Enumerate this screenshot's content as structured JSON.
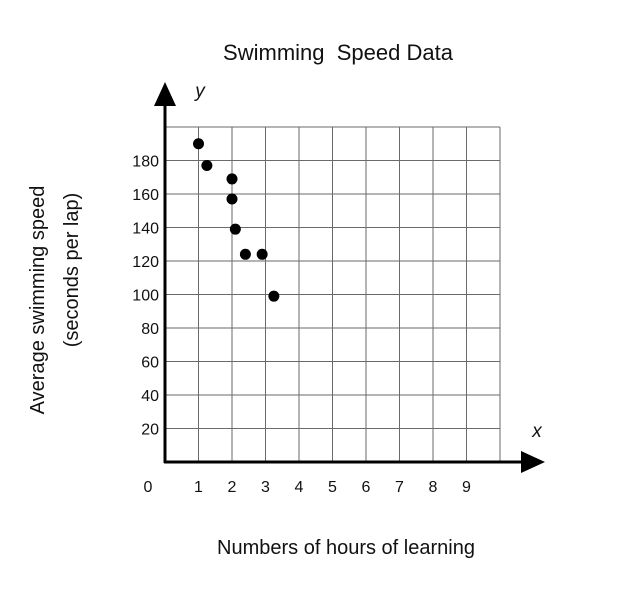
{
  "chart_data": {
    "type": "scatter",
    "title": "Swimming  Speed Data",
    "xlabel": "Numbers of hours of learning",
    "ylabel_line1": "Average swimming speed",
    "ylabel_line2": "(seconds per lap)",
    "x_var": "x",
    "y_var": "y",
    "origin_label": "0",
    "xlim": [
      0,
      10
    ],
    "ylim": [
      0,
      200
    ],
    "x_ticks": [
      1,
      2,
      3,
      4,
      5,
      6,
      7,
      8,
      9
    ],
    "y_ticks": [
      20,
      40,
      60,
      80,
      100,
      120,
      140,
      160,
      180
    ],
    "grid": true,
    "points": [
      {
        "x": 1.0,
        "y": 190
      },
      {
        "x": 1.25,
        "y": 177
      },
      {
        "x": 2.0,
        "y": 169
      },
      {
        "x": 2.0,
        "y": 157
      },
      {
        "x": 2.1,
        "y": 139
      },
      {
        "x": 2.4,
        "y": 124
      },
      {
        "x": 2.9,
        "y": 124
      },
      {
        "x": 3.25,
        "y": 99
      }
    ]
  }
}
